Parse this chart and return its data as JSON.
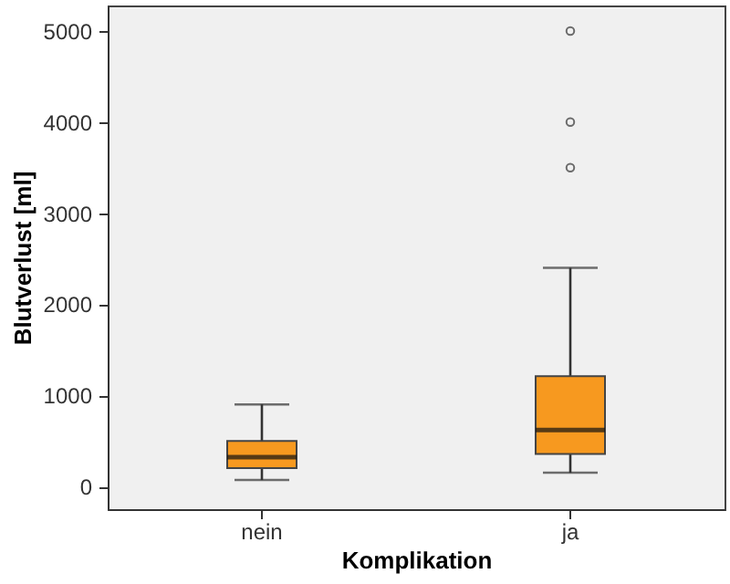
{
  "chart_data": {
    "type": "box",
    "xlabel": "Komplikation",
    "ylabel": "Blutverlust [ml]",
    "categories": [
      "nein",
      "ja"
    ],
    "color": "#f7991f",
    "ylim": [
      -250,
      5280
    ],
    "yticks": [
      0,
      1000,
      2000,
      3000,
      4000,
      5000
    ],
    "grid": false,
    "boxes": [
      {
        "low": 70,
        "q1": 200,
        "median": 320,
        "q3": 500,
        "high": 900
      },
      {
        "low": 150,
        "q1": 355,
        "median": 620,
        "q3": 1210,
        "high": 2400,
        "outliers": [
          3500,
          4000,
          5000
        ]
      }
    ]
  }
}
